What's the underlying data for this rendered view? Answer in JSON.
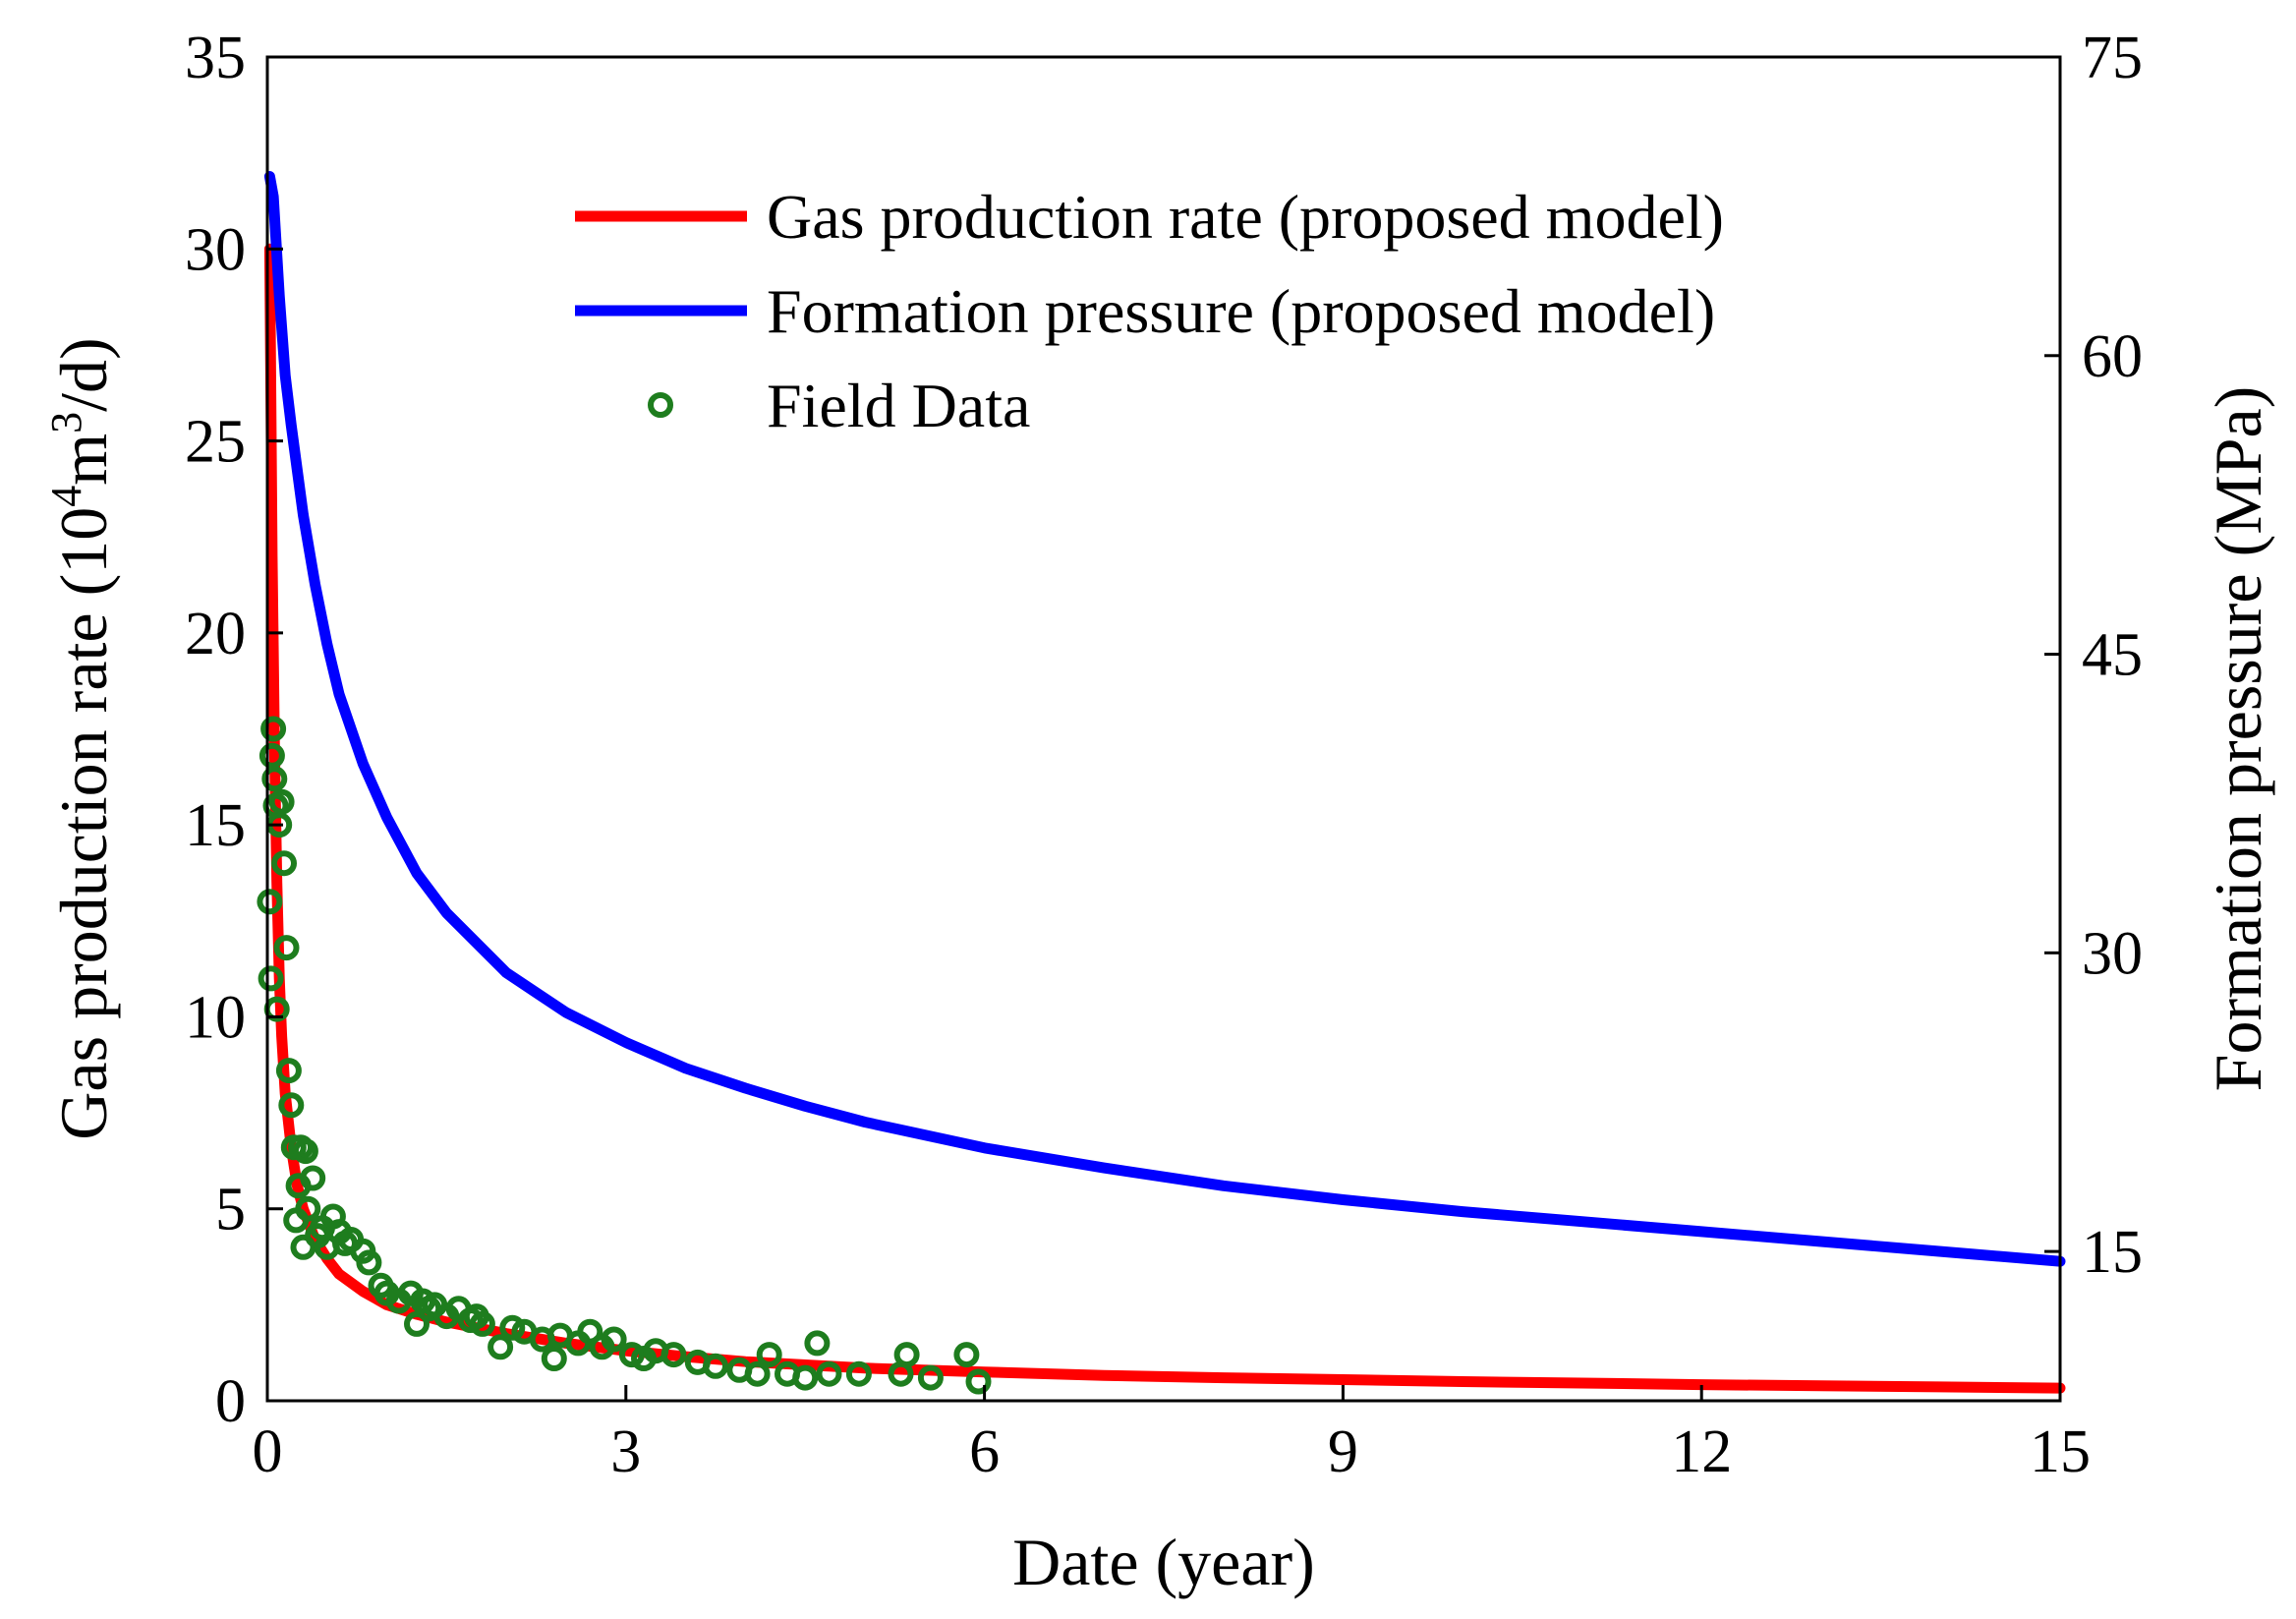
{
  "chart_data": {
    "type": "line",
    "x": {
      "label": "Date (year)",
      "range": [
        0,
        15
      ],
      "ticks": [
        0,
        3,
        6,
        9,
        12,
        15
      ],
      "tick_labels": [
        "0",
        "3",
        "6",
        "9",
        "12",
        "15"
      ]
    },
    "y_left": {
      "label_prefix": "Gas production rate (10",
      "label_sup1": "4",
      "label_mid": "m",
      "label_sup2": "3",
      "label_suffix": "/d)",
      "range": [
        0,
        35
      ],
      "ticks": [
        0,
        5,
        10,
        15,
        20,
        25,
        30,
        35
      ],
      "tick_labels": [
        "0",
        "5",
        "10",
        "15",
        "20",
        "25",
        "30",
        "35"
      ]
    },
    "y_right": {
      "label": "Formation pressure (MPa)",
      "range": [
        7.5,
        75
      ],
      "ticks": [
        15,
        30,
        45,
        60,
        75
      ],
      "tick_labels": [
        "15",
        "30",
        "45",
        "60",
        "75"
      ]
    },
    "legend": {
      "position": "top-right",
      "entries": [
        "Gas production rate (proposed model)",
        "Formation pressure (proposed model)",
        "Field Data"
      ]
    },
    "series": [
      {
        "name": "Gas production rate (proposed model)",
        "axis": "left",
        "color": "#ff0000",
        "style": "line",
        "x": [
          0.02,
          0.04,
          0.06,
          0.08,
          0.1,
          0.12,
          0.15,
          0.2,
          0.25,
          0.3,
          0.4,
          0.5,
          0.6,
          0.8,
          1.0,
          1.25,
          1.5,
          2.0,
          2.5,
          3.0,
          3.5,
          4.0,
          5.0,
          6.0,
          7.0,
          8.0,
          9.0,
          10.0,
          11.0,
          12.0,
          13.0,
          14.0,
          15.0
        ],
        "y": [
          30.0,
          22.0,
          17.0,
          13.5,
          11.0,
          9.5,
          8.0,
          6.6,
          5.6,
          5.0,
          4.2,
          3.7,
          3.3,
          2.85,
          2.5,
          2.25,
          2.05,
          1.75,
          1.5,
          1.3,
          1.15,
          1.02,
          0.85,
          0.75,
          0.66,
          0.6,
          0.55,
          0.5,
          0.46,
          0.42,
          0.39,
          0.36,
          0.33
        ]
      },
      {
        "name": "Formation pressure (proposed model)",
        "axis": "right",
        "color": "#0000ff",
        "style": "line",
        "x": [
          0.02,
          0.05,
          0.1,
          0.15,
          0.2,
          0.3,
          0.4,
          0.5,
          0.6,
          0.8,
          1.0,
          1.25,
          1.5,
          2.0,
          2.5,
          3.0,
          3.5,
          4.0,
          4.5,
          5.0,
          6.0,
          7.0,
          8.0,
          9.0,
          10.0,
          11.0,
          12.0,
          13.0,
          14.0,
          15.0
        ],
        "y": [
          69.0,
          68.0,
          63.0,
          59.0,
          56.5,
          52.0,
          48.5,
          45.5,
          43.0,
          39.5,
          36.8,
          34.0,
          32.0,
          29.0,
          27.0,
          25.5,
          24.2,
          23.2,
          22.3,
          21.5,
          20.2,
          19.2,
          18.3,
          17.6,
          17.0,
          16.5,
          16.0,
          15.5,
          15.0,
          14.5
        ]
      },
      {
        "name": "Field Data",
        "axis": "left",
        "color": "#1e7d1e",
        "style": "scatter",
        "x": [
          0.02,
          0.03,
          0.04,
          0.05,
          0.06,
          0.07,
          0.08,
          0.1,
          0.12,
          0.14,
          0.16,
          0.18,
          0.2,
          0.22,
          0.24,
          0.26,
          0.28,
          0.3,
          0.32,
          0.34,
          0.38,
          0.42,
          0.46,
          0.5,
          0.55,
          0.6,
          0.65,
          0.7,
          0.8,
          0.85,
          0.95,
          1.0,
          1.1,
          1.2,
          1.25,
          1.3,
          1.35,
          1.4,
          1.5,
          1.6,
          1.7,
          1.75,
          1.8,
          1.95,
          2.05,
          2.15,
          2.3,
          2.4,
          2.45,
          2.6,
          2.7,
          2.8,
          2.9,
          3.05,
          3.15,
          3.25,
          3.4,
          3.6,
          3.75,
          3.95,
          4.1,
          4.2,
          4.35,
          4.5,
          4.6,
          4.7,
          4.95,
          5.3,
          5.35,
          5.55,
          5.85,
          5.95
        ],
        "y": [
          13.0,
          11.0,
          16.8,
          17.5,
          16.2,
          15.5,
          10.2,
          15.0,
          15.6,
          14.0,
          11.8,
          8.6,
          7.7,
          6.6,
          4.7,
          5.6,
          6.6,
          4.0,
          6.5,
          5.0,
          5.8,
          4.3,
          4.5,
          4.0,
          4.8,
          4.4,
          4.1,
          4.2,
          3.9,
          3.6,
          3.0,
          2.8,
          2.6,
          2.8,
          2.0,
          2.6,
          2.4,
          2.5,
          2.2,
          2.4,
          2.1,
          2.2,
          2.0,
          1.4,
          1.9,
          1.8,
          1.6,
          1.1,
          1.7,
          1.5,
          1.8,
          1.4,
          1.6,
          1.2,
          1.1,
          1.3,
          1.2,
          1.0,
          0.9,
          0.8,
          0.7,
          1.2,
          0.7,
          0.6,
          1.5,
          0.7,
          0.7,
          0.7,
          1.2,
          0.6,
          1.2,
          0.5
        ]
      }
    ]
  }
}
